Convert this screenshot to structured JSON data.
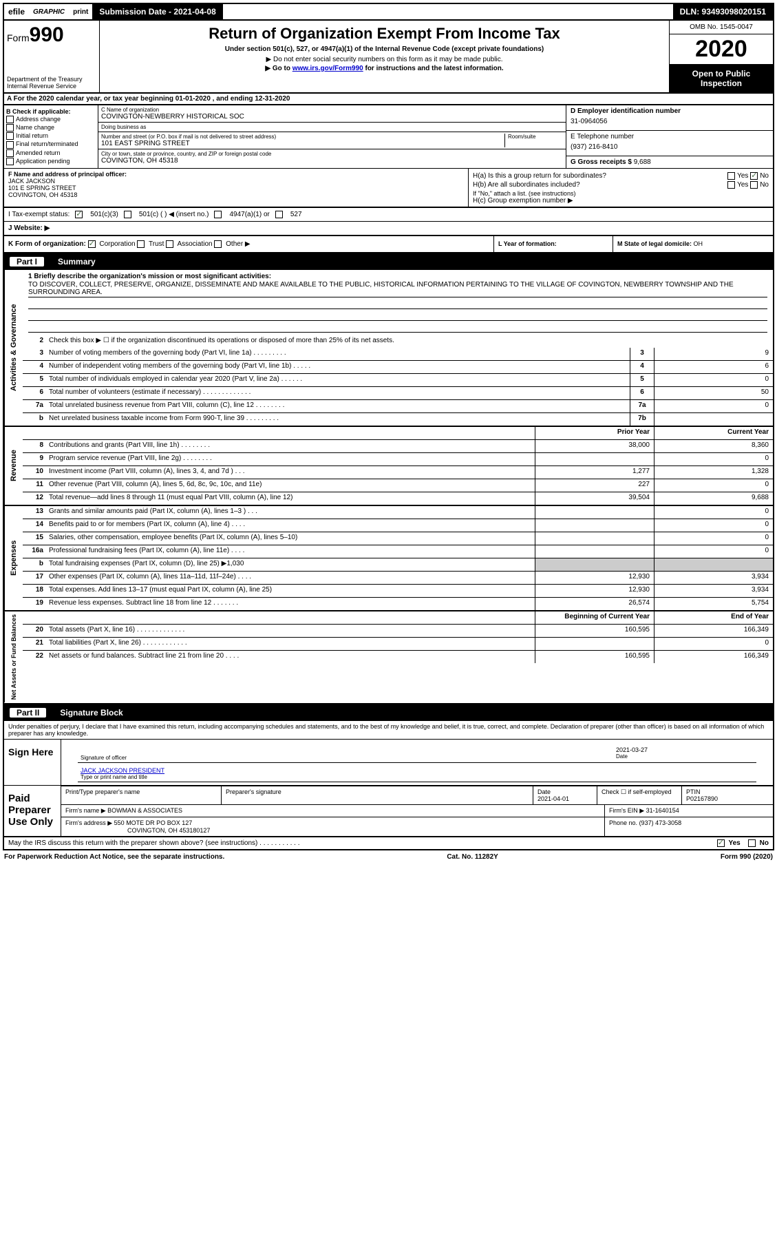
{
  "top": {
    "efile": "efile",
    "graphic": "GRAPHIC",
    "print": "print",
    "submission": "Submission Date - 2021-04-08",
    "dln": "DLN: 93493098020151"
  },
  "header": {
    "form_prefix": "Form",
    "form_num": "990",
    "dept": "Department of the Treasury\nInternal Revenue Service",
    "title": "Return of Organization Exempt From Income Tax",
    "sub1": "Under section 501(c), 527, or 4947(a)(1) of the Internal Revenue Code (except private foundations)",
    "sub2": "▶ Do not enter social security numbers on this form as it may be made public.",
    "sub3_pre": "▶ Go to ",
    "sub3_link": "www.irs.gov/Form990",
    "sub3_post": " for instructions and the latest information.",
    "omb": "OMB No. 1545-0047",
    "year": "2020",
    "open": "Open to Public Inspection"
  },
  "rowA": "A For the 2020 calendar year, or tax year beginning 01-01-2020    , and ending 12-31-2020",
  "B": {
    "label": "B Check if applicable:",
    "items": [
      "Address change",
      "Name change",
      "Initial return",
      "Final return/terminated",
      "Amended return",
      "Application pending"
    ]
  },
  "C": {
    "name_lbl": "C Name of organization",
    "name": "COVINGTON-NEWBERRY HISTORICAL SOC",
    "dba_lbl": "Doing business as",
    "addr_lbl": "Number and street (or P.O. box if mail is not delivered to street address)",
    "room_lbl": "Room/suite",
    "addr": "101 EAST SPRING STREET",
    "city_lbl": "City or town, state or province, country, and ZIP or foreign postal code",
    "city": "COVINGTON, OH  45318"
  },
  "D": {
    "lbl": "D Employer identification number",
    "val": "31-0964056"
  },
  "E": {
    "lbl": "E Telephone number",
    "val": "(937) 216-8410"
  },
  "G": {
    "lbl": "G Gross receipts $",
    "val": "9,688"
  },
  "F": {
    "lbl": "F  Name and address of principal officer:",
    "name": "JACK JACKSON",
    "addr1": "101 E SPRING STREET",
    "addr2": "COVINGTON, OH  45318"
  },
  "H": {
    "a_lbl": "H(a)  Is this a group return for subordinates?",
    "a_yes": "Yes",
    "a_no": "No",
    "b_lbl": "H(b)  Are all subordinates included?",
    "b_note": "If \"No,\" attach a list. (see instructions)",
    "c_lbl": "H(c)  Group exemption number ▶"
  },
  "I": {
    "lbl": "I   Tax-exempt status:",
    "opt1": "501(c)(3)",
    "opt2": "501(c) (   ) ◀ (insert no.)",
    "opt3": "4947(a)(1) or",
    "opt4": "527"
  },
  "J": {
    "lbl": "J   Website: ▶"
  },
  "K": {
    "lbl": "K Form of organization:",
    "corp": "Corporation",
    "trust": "Trust",
    "assoc": "Association",
    "other": "Other ▶"
  },
  "L": {
    "lbl": "L Year of formation:"
  },
  "M": {
    "lbl": "M State of legal domicile:",
    "val": "OH"
  },
  "part1": {
    "num": "Part I",
    "title": "Summary"
  },
  "mission": {
    "line1_lbl": "1  Briefly describe the organization's mission or most significant activities:",
    "text": "TO DISCOVER, COLLECT, PRESERVE, ORGANIZE, DISSEMINATE AND MAKE AVAILABLE TO THE PUBLIC, HISTORICAL INFORMATION PERTAINING TO THE VILLAGE OF COVINGTON, NEWBERRY TOWNSHIP AND THE SURROUNDING AREA."
  },
  "gov_lines": [
    {
      "n": "2",
      "d": "Check this box ▶ ☐  if the organization discontinued its operations or disposed of more than 25% of its net assets."
    },
    {
      "n": "3",
      "d": "Number of voting members of the governing body (Part VI, line 1a)  .    .    .    .    .    .    .    .    .",
      "box": "3",
      "v": "9"
    },
    {
      "n": "4",
      "d": "Number of independent voting members of the governing body (Part VI, line 1b)   .    .    .    .    .",
      "box": "4",
      "v": "6"
    },
    {
      "n": "5",
      "d": "Total number of individuals employed in calendar year 2020 (Part V, line 2a)   .    .    .    .    .    .",
      "box": "5",
      "v": "0"
    },
    {
      "n": "6",
      "d": "Total number of volunteers (estimate if necessary)    .    .    .    .    .    .    .    .    .    .    .    .    .",
      "box": "6",
      "v": "50"
    },
    {
      "n": "7a",
      "d": "Total unrelated business revenue from Part VIII, column (C), line 12   .    .    .    .    .    .    .    .",
      "box": "7a",
      "v": "0"
    },
    {
      "n": "b",
      "d": "Net unrelated business taxable income from Form 990-T, line 39   .    .    .    .    .    .    .    .    .",
      "box": "7b",
      "v": ""
    }
  ],
  "col_prior": "Prior Year",
  "col_current": "Current Year",
  "rev_lines": [
    {
      "n": "8",
      "d": "Contributions and grants (Part VIII, line 1h)   .    .    .    .    .    .    .    .",
      "p": "38,000",
      "c": "8,360"
    },
    {
      "n": "9",
      "d": "Program service revenue (Part VIII, line 2g)   .    .    .    .    .    .    .    .",
      "p": "",
      "c": "0"
    },
    {
      "n": "10",
      "d": "Investment income (Part VIII, column (A), lines 3, 4, and 7d )   .    .    .",
      "p": "1,277",
      "c": "1,328"
    },
    {
      "n": "11",
      "d": "Other revenue (Part VIII, column (A), lines 5, 6d, 8c, 9c, 10c, and 11e)",
      "p": "227",
      "c": "0"
    },
    {
      "n": "12",
      "d": "Total revenue—add lines 8 through 11 (must equal Part VIII, column (A), line 12)",
      "p": "39,504",
      "c": "9,688"
    }
  ],
  "exp_lines": [
    {
      "n": "13",
      "d": "Grants and similar amounts paid (Part IX, column (A), lines 1–3 )  .    .    .",
      "p": "",
      "c": "0"
    },
    {
      "n": "14",
      "d": "Benefits paid to or for members (Part IX, column (A), line 4)   .    .    .    .",
      "p": "",
      "c": "0"
    },
    {
      "n": "15",
      "d": "Salaries, other compensation, employee benefits (Part IX, column (A), lines 5–10)",
      "p": "",
      "c": "0"
    },
    {
      "n": "16a",
      "d": "Professional fundraising fees (Part IX, column (A), line 11e)   .    .    .    .",
      "p": "",
      "c": "0"
    },
    {
      "n": "b",
      "d": "Total fundraising expenses (Part IX, column (D), line 25) ▶1,030",
      "p": "shaded",
      "c": "shaded"
    },
    {
      "n": "17",
      "d": "Other expenses (Part IX, column (A), lines 11a–11d, 11f–24e)   .    .    .    .",
      "p": "12,930",
      "c": "3,934"
    },
    {
      "n": "18",
      "d": "Total expenses. Add lines 13–17 (must equal Part IX, column (A), line 25)",
      "p": "12,930",
      "c": "3,934"
    },
    {
      "n": "19",
      "d": "Revenue less expenses. Subtract line 18 from line 12   .    .    .    .    .    .    .",
      "p": "26,574",
      "c": "5,754"
    }
  ],
  "col_begin": "Beginning of Current Year",
  "col_end": "End of Year",
  "net_lines": [
    {
      "n": "20",
      "d": "Total assets (Part X, line 16)   .    .    .    .    .    .    .    .    .    .    .    .    .",
      "p": "160,595",
      "c": "166,349"
    },
    {
      "n": "21",
      "d": "Total liabilities (Part X, line 26)   .    .    .    .    .    .    .    .    .    .    .    .",
      "p": "",
      "c": "0"
    },
    {
      "n": "22",
      "d": "Net assets or fund balances. Subtract line 21 from line 20   .    .    .    .",
      "p": "160,595",
      "c": "166,349"
    }
  ],
  "part2": {
    "num": "Part II",
    "title": "Signature Block"
  },
  "sig": {
    "intro": "Under penalties of perjury, I declare that I have examined this return, including accompanying schedules and statements, and to the best of my knowledge and belief, it is true, correct, and complete. Declaration of preparer (other than officer) is based on all information of which preparer has any knowledge.",
    "sign_here": "Sign Here",
    "sig_officer_lbl": "Signature of officer",
    "date_lbl": "Date",
    "date_val": "2021-03-27",
    "name_title": "JACK JACKSON  PRESIDENT",
    "name_lbl": "Type or print name and title",
    "paid": "Paid Preparer Use Only",
    "prep_name_lbl": "Print/Type preparer's name",
    "prep_sig_lbl": "Preparer's signature",
    "prep_date_lbl": "Date",
    "prep_date": "2021-04-01",
    "check_lbl": "Check ☐ if self-employed",
    "ptin_lbl": "PTIN",
    "ptin": "P02167890",
    "firm_name_lbl": "Firm's name    ▶",
    "firm_name": "BOWMAN & ASSOCIATES",
    "firm_ein_lbl": "Firm's EIN ▶",
    "firm_ein": "31-1640154",
    "firm_addr_lbl": "Firm's address ▶",
    "firm_addr": "550 MOTE DR PO BOX 127",
    "firm_city": "COVINGTON, OH  453180127",
    "phone_lbl": "Phone no.",
    "phone": "(937) 473-3058"
  },
  "discuss": {
    "q": "May the IRS discuss this return with the preparer shown above? (see instructions)   .    .    .    .    .    .    .    .    .    .    .",
    "yes": "Yes",
    "no": "No"
  },
  "footer": {
    "left": "For Paperwork Reduction Act Notice, see the separate instructions.",
    "mid": "Cat. No. 11282Y",
    "right": "Form 990 (2020)"
  },
  "sides": {
    "gov": "Activities & Governance",
    "rev": "Revenue",
    "exp": "Expenses",
    "net": "Net Assets or Fund Balances"
  }
}
